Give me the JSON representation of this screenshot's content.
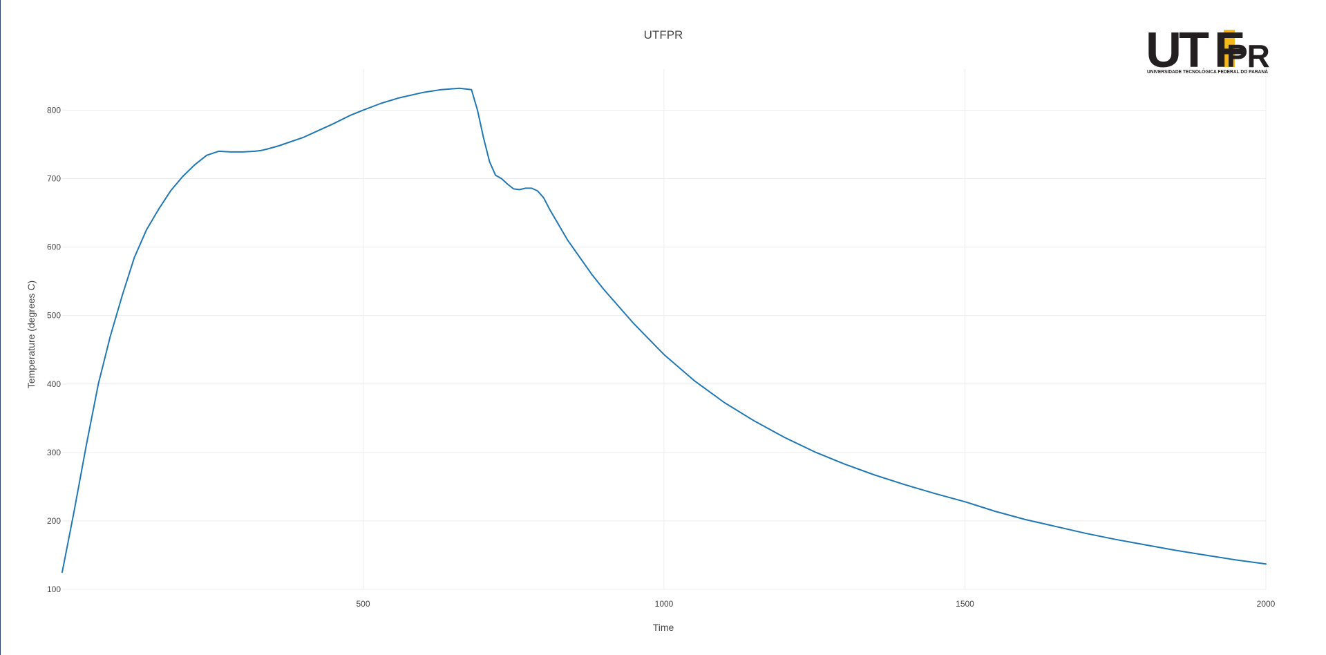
{
  "chart_data": {
    "type": "line",
    "title": "UTFPR",
    "xlabel": "Time",
    "ylabel": "Temperature (degrees C)",
    "xlim": [
      0,
      2000
    ],
    "ylim": [
      100,
      860
    ],
    "x_ticks": [
      500,
      1000,
      1500,
      2000
    ],
    "y_ticks": [
      100,
      200,
      300,
      400,
      500,
      600,
      700,
      800
    ],
    "grid": true,
    "legend": "none",
    "series": [
      {
        "color": "#1f77b4",
        "x": [
          0,
          20,
          40,
          60,
          80,
          100,
          120,
          140,
          160,
          180,
          200,
          220,
          240,
          260,
          280,
          300,
          320,
          330,
          340,
          360,
          380,
          400,
          420,
          450,
          480,
          500,
          530,
          560,
          600,
          630,
          660,
          680,
          690,
          700,
          710,
          720,
          730,
          740,
          750,
          760,
          770,
          780,
          790,
          800,
          810,
          820,
          840,
          860,
          880,
          900,
          950,
          1000,
          1050,
          1100,
          1150,
          1200,
          1250,
          1300,
          1350,
          1400,
          1450,
          1500,
          1550,
          1600,
          1650,
          1700,
          1750,
          1800,
          1850,
          1900,
          1950,
          2000
        ],
        "y": [
          125,
          215,
          310,
          400,
          470,
          530,
          585,
          625,
          655,
          682,
          703,
          720,
          734,
          740,
          739,
          739,
          740,
          741,
          743,
          748,
          754,
          760,
          768,
          780,
          793,
          800,
          810,
          818,
          826,
          830,
          832,
          830,
          800,
          760,
          725,
          705,
          700,
          692,
          685,
          684,
          686,
          686,
          682,
          672,
          655,
          640,
          610,
          585,
          560,
          538,
          488,
          443,
          405,
          373,
          346,
          322,
          301,
          283,
          267,
          253,
          240,
          228,
          214,
          202,
          192,
          182,
          173,
          165,
          157,
          150,
          143,
          137
        ]
      }
    ]
  },
  "logo": {
    "main_text": "UTFPR",
    "tagline": "UNIVERSIDADE TECNOLÓGICA FEDERAL DO PARANÁ",
    "accent_color": "#f5b81c"
  }
}
